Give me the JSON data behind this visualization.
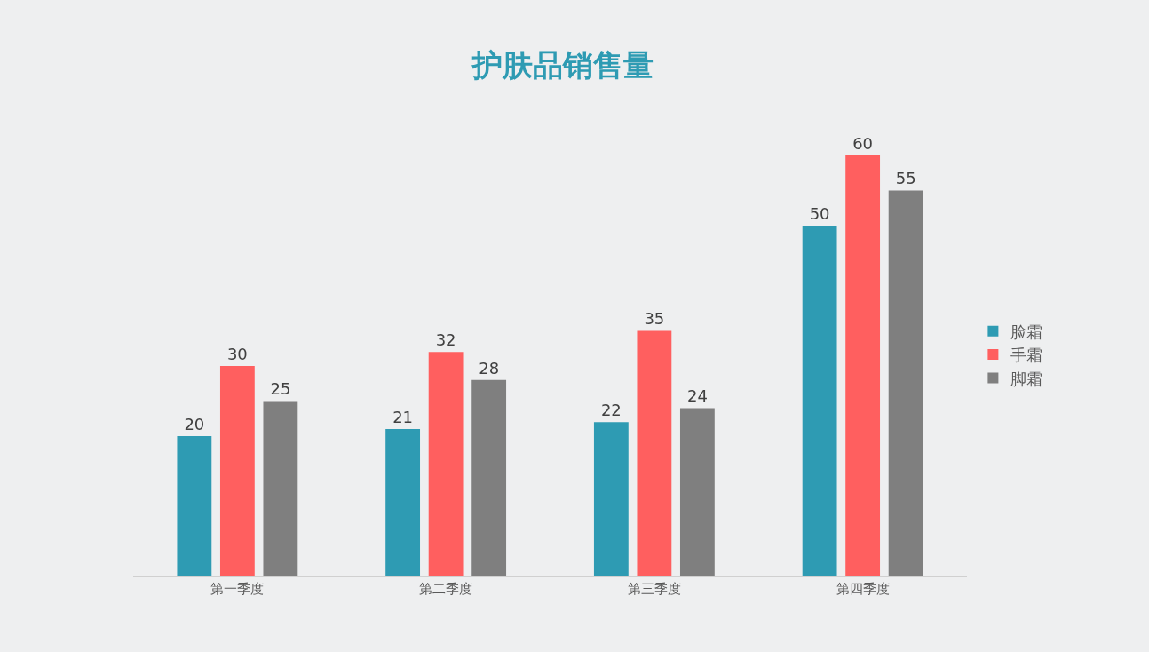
{
  "chart_data": {
    "type": "bar",
    "title": "护肤品销售量",
    "categories": [
      "第一季度",
      "第二季度",
      "第三季度",
      "第四季度"
    ],
    "series": [
      {
        "name": "脸霜",
        "color": "#2e9bb3",
        "values": [
          20,
          21,
          22,
          50
        ]
      },
      {
        "name": "手霜",
        "color": "#ff5f5f",
        "values": [
          30,
          32,
          35,
          60
        ]
      },
      {
        "name": "脚霜",
        "color": "#7f7f7f",
        "values": [
          25,
          28,
          24,
          55
        ]
      }
    ],
    "data_labels": true,
    "grid": false,
    "legend": "right"
  }
}
